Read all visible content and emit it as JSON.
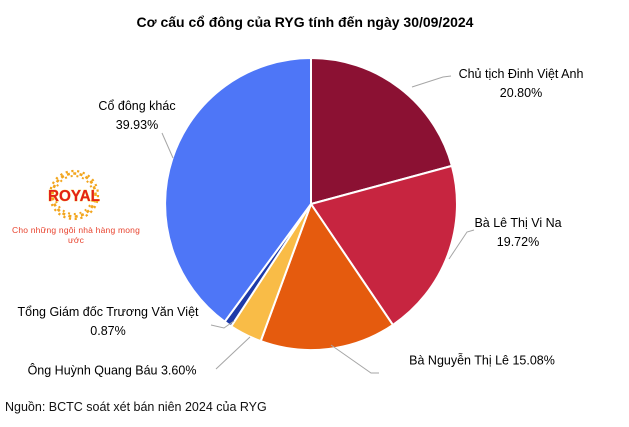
{
  "title": "Cơ cấu cổ đông của RYG tính đến ngày 30/09/2024",
  "source": "Nguồn: BCTC soát xét bán niên 2024 của RYG",
  "logo": {
    "name": "ROYAL",
    "tagline": "Cho những ngôi nhà hàng mong ước",
    "text_color": "#e32119",
    "outline_color": "#f8c01e",
    "ring_color": "#f2a51d",
    "tagline_color": "#e8432e"
  },
  "chart_data": {
    "type": "pie",
    "title": "Cơ cấu cổ đông của RYG tính đến ngày 30/09/2024",
    "start_angle_deg": 0,
    "direction": "clockwise",
    "legend_position": "none",
    "leader_line_color": "#a6a6a6",
    "slice_border_color": "#ffffff",
    "slices": [
      {
        "label": "Chủ tịch Đinh Việt Anh",
        "value": 20.8,
        "pct_label": "20.80%",
        "color": "#8b1133"
      },
      {
        "label": "Bà Lê Thị Vi Na",
        "value": 19.72,
        "pct_label": "19.72%",
        "color": "#c72540"
      },
      {
        "label": "Bà Nguyễn Thị Lê",
        "value": 15.08,
        "pct_label": "15.08%",
        "color": "#e55b0e"
      },
      {
        "label": "Ông Huỳnh Quang Báu",
        "value": 3.6,
        "pct_label": "3.60%",
        "color": "#f9bc47"
      },
      {
        "label": "Tổng Giám đốc Trương Văn Việt",
        "value": 0.87,
        "pct_label": "0.87%",
        "color": "#1e3aa8"
      },
      {
        "label": "Cổ đông khác",
        "value": 39.93,
        "pct_label": "39.93%",
        "color": "#4e76f7"
      }
    ]
  }
}
